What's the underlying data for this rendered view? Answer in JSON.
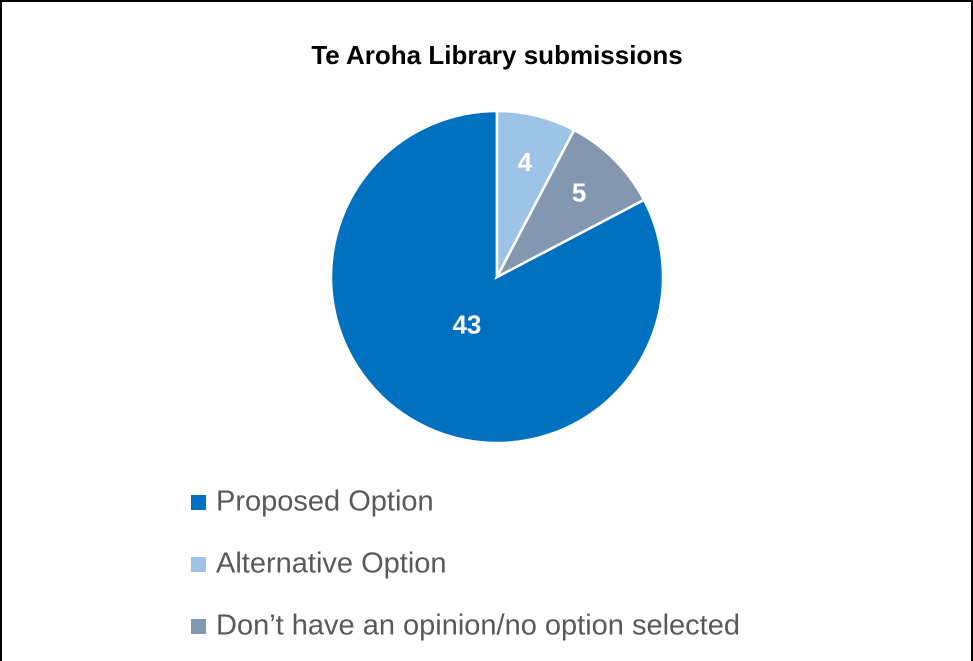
{
  "chart_data": {
    "type": "pie",
    "title": "Te Aroha Library submissions",
    "categories": [
      "Proposed Option",
      "Alternative Option",
      "Don’t have an opinion/no option selected"
    ],
    "values": [
      43,
      4,
      5
    ],
    "colors": [
      "#0070c0",
      "#9dc3e6",
      "#8497b0"
    ],
    "legend": "bottom"
  }
}
